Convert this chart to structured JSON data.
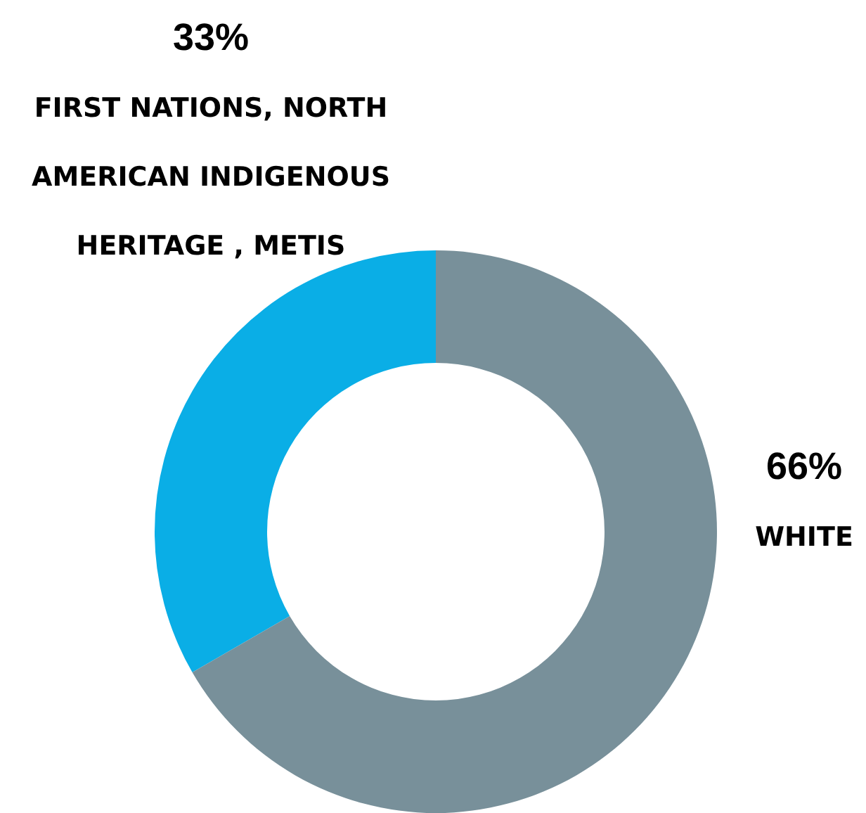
{
  "chart_data": {
    "type": "donut",
    "categories": [
      "FIRST NATIONS, NORTH AMERICAN INDIGENOUS HERITAGE , METIS",
      "WHITE"
    ],
    "values": [
      33,
      66
    ],
    "colors": [
      "#0aaee6",
      "#78909a"
    ],
    "value_labels": [
      "33%",
      "66%"
    ],
    "legend": false
  }
}
